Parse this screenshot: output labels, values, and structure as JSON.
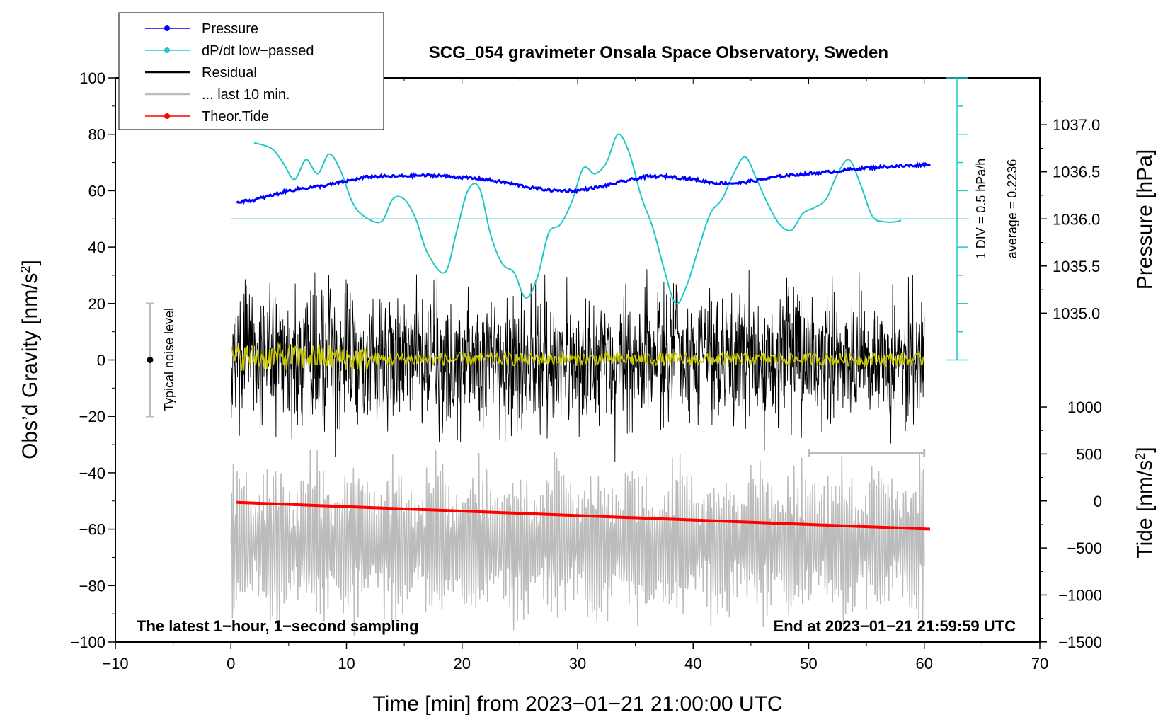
{
  "chart_data": {
    "type": "line",
    "title": "SCG_054 gravimeter Onsala Space Observatory, Sweden",
    "xlabel": "Time [min] from 2023−01−21 21:00:00 UTC",
    "ylabel": "Obs’d Gravity [nm/s",
    "ylabel_sup": "2",
    "ylabel_close": "]",
    "y2label": "Pressure [hPa]",
    "y3label": "Tide [nm/s",
    "y3label_sup": "2",
    "y3label_close": "]",
    "xlim": [
      -10,
      70
    ],
    "ylim": [
      -100,
      100
    ],
    "x_ticks": [
      "−10",
      "0",
      "10",
      "20",
      "30",
      "40",
      "50",
      "60",
      "70"
    ],
    "y_ticks": [
      "100",
      "80",
      "60",
      "40",
      "20",
      "0",
      "−20",
      "−40",
      "−60",
      "−80",
      "−100"
    ],
    "pressure_axis": {
      "ticks": [
        "1037.0",
        "1036.5",
        "1036.0",
        "1035.5",
        "1035.0"
      ],
      "values": [
        1037.0,
        1036.5,
        1036.0,
        1035.5,
        1035.0
      ],
      "gravity_at_1036": 50,
      "gravity_per_hpa": 33.4
    },
    "tide_axis": {
      "ticks": [
        "1000",
        "500",
        "0",
        "−500",
        "−1000",
        "−1500"
      ],
      "values": [
        1000,
        500,
        0,
        -500,
        -1000,
        -1500
      ],
      "gravity_at_0": -50,
      "gravity_per_unit": 0.0333
    },
    "legend": [
      {
        "label": "Pressure",
        "color": "#0000ff"
      },
      {
        "label": "dP/dt low−passed",
        "color": "#20c8c8"
      },
      {
        "label": "Residual",
        "color": "#000000"
      },
      {
        "label": "... last 10 min.",
        "color": "#bbbbbb"
      },
      {
        "label": "Theor.Tide",
        "color": "#ff0000"
      }
    ],
    "series": [
      {
        "name": "Pressure",
        "color": "#0000ff",
        "unit": "hPa",
        "x": [
          0.5,
          2,
          3.5,
          5,
          6.5,
          8,
          10,
          12,
          14,
          16,
          18,
          20,
          22,
          24,
          26,
          28,
          30,
          32,
          34,
          36,
          38,
          40,
          42,
          44,
          46,
          48,
          50,
          52,
          54,
          56,
          58,
          60.5
        ],
        "values": [
          1036.18,
          1036.2,
          1036.25,
          1036.3,
          1036.33,
          1036.35,
          1036.4,
          1036.45,
          1036.45,
          1036.46,
          1036.46,
          1036.44,
          1036.42,
          1036.38,
          1036.33,
          1036.3,
          1036.3,
          1036.34,
          1036.4,
          1036.45,
          1036.45,
          1036.42,
          1036.38,
          1036.38,
          1036.42,
          1036.46,
          1036.48,
          1036.5,
          1036.53,
          1036.55,
          1036.56,
          1036.58
        ]
      },
      {
        "name": "dP/dt low−passed",
        "color": "#20c8c8",
        "unit": "nm/s2",
        "x": [
          2,
          3.5,
          4.5,
          5.5,
          6.5,
          7.5,
          8.5,
          9.5,
          10.5,
          11.5,
          13,
          14,
          15,
          16,
          17,
          18.5,
          19.5,
          20.5,
          21.5,
          22.5,
          23.5,
          24.5,
          25.5,
          26.5,
          27.5,
          28.5,
          29.5,
          30.5,
          31.5,
          32.5,
          33.5,
          34.5,
          35.5,
          36.5,
          37.5,
          38.5,
          39.5,
          40.5,
          41.5,
          42.5,
          43.5,
          44.5,
          45.5,
          46.5,
          47.5,
          48.5,
          49.5,
          50.5,
          51.5,
          52.5,
          53.5,
          54.5,
          55.5,
          56.5,
          57.5,
          58
        ],
        "values": [
          77,
          75,
          70,
          64,
          71,
          66,
          73,
          67,
          56,
          51,
          49,
          57,
          57,
          50,
          38,
          31,
          45,
          60,
          61,
          44,
          34,
          31,
          22,
          29,
          45,
          48,
          56,
          68,
          66,
          70,
          80,
          73,
          58,
          47,
          32,
          20,
          27,
          40,
          52,
          57,
          66,
          72,
          64,
          55,
          48,
          46,
          52,
          54,
          57,
          66,
          71,
          62,
          51,
          49,
          49,
          49.5
        ]
      },
      {
        "name": "Residual",
        "color": "#000000",
        "x_range": [
          0,
          60
        ],
        "amplitude_nm_s2": 35,
        "typical_noise_level": [
          -20,
          20
        ]
      },
      {
        "name": "... last 10 min.",
        "color": "#bbbbbb",
        "x_range": [
          0,
          60
        ],
        "amplitude_nm_s2": 30,
        "center": -65
      },
      {
        "name": "Theor.Tide",
        "color": "#ff0000",
        "unit": "nm/s2",
        "x": [
          0.5,
          60.5
        ],
        "values": [
          -15,
          -300
        ]
      },
      {
        "name": "Smoothed residual",
        "color": "#c8c800",
        "x_range": [
          0,
          60
        ],
        "amplitude_nm_s2": 3
      }
    ],
    "dpdt_zero_line": 50,
    "div_label": "1 DIV = 0.5 hPa/h",
    "average_label": "average = 0.2236",
    "noise_label": "Typical noise level",
    "last10_bar": [
      50,
      60
    ],
    "footer_left": "The latest 1−hour, 1−second sampling",
    "footer_right": "End at 2023−01−21 21:59:59 UTC"
  }
}
